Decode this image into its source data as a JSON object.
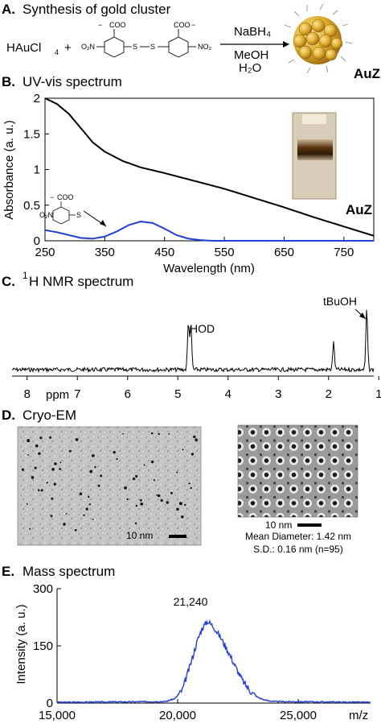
{
  "panels": {
    "a": {
      "letter": "A.",
      "title": "Synthesis of gold cluster",
      "reactant_1": "HAuCl",
      "reactant_1_sub": "4",
      "plus": "+",
      "ligand_coo_left": "COO",
      "ligand_coo_left_charge": "−",
      "ligand_no2_left": "O₂N",
      "ligand_coo_right": "COO",
      "ligand_coo_right_charge": "−",
      "ligand_no2_right": "NO₂",
      "ligand_s": "S",
      "reagent_1": "NaBH₄",
      "reagent_2": "MeOH",
      "reagent_3": "H₂O",
      "product_label": "AuZ"
    },
    "b": {
      "letter": "B.",
      "title": "UV-vis spectrum",
      "auz_label": "AuZ",
      "inset_coo": "COO",
      "inset_coo_charge": "−",
      "inset_no2": "O₂N",
      "inset_s": "S"
    },
    "c": {
      "letter": "C.",
      "title_sup": "1",
      "title": "H NMR spectrum",
      "hod_label": "HOD",
      "tbuoh_label": "tBuOH"
    },
    "d": {
      "letter": "D.",
      "title": "Cryo-EM",
      "scale_left": "10 nm",
      "scale_right": "10 nm",
      "mean_diameter": "Mean Diameter: 1.42 nm",
      "sd": "S.D.: 0.16 nm (n=95)"
    },
    "e": {
      "letter": "E.",
      "title": "Mass spectrum",
      "peak_label": "21,240"
    }
  },
  "chart_data": [
    {
      "type": "line",
      "panel": "B",
      "xlabel": "Wavelength (nm)",
      "ylabel": "Absorbance (a. u.)",
      "xlim": [
        250,
        800
      ],
      "ylim": [
        0,
        2
      ],
      "x_ticks": [
        "250",
        "350",
        "450",
        "550",
        "650",
        "750"
      ],
      "y_ticks": [
        "0",
        "0.5",
        "1",
        "1.5",
        "2"
      ],
      "series": [
        {
          "name": "AuZ",
          "color": "#000000",
          "x": [
            250,
            270,
            290,
            310,
            330,
            350,
            380,
            410,
            450,
            500,
            550,
            600,
            650,
            700,
            750,
            800
          ],
          "y": [
            2.0,
            1.92,
            1.78,
            1.58,
            1.38,
            1.25,
            1.12,
            1.03,
            0.95,
            0.84,
            0.73,
            0.6,
            0.47,
            0.33,
            0.2,
            0.07
          ]
        },
        {
          "name": "ligand",
          "color": "#1f3fd6",
          "x": [
            250,
            270,
            290,
            310,
            330,
            350,
            370,
            390,
            410,
            430,
            450,
            470,
            490,
            510,
            530,
            550,
            600,
            700,
            800
          ],
          "y": [
            0.15,
            0.12,
            0.08,
            0.04,
            0.03,
            0.06,
            0.13,
            0.22,
            0.27,
            0.25,
            0.17,
            0.08,
            0.03,
            0.01,
            0.0,
            0.0,
            0.0,
            0.0,
            0.0
          ]
        }
      ]
    },
    {
      "type": "line",
      "panel": "C",
      "xlabel": "ppm",
      "xlim": [
        8.3,
        1.1
      ],
      "x_reversed": true,
      "x_ticks": [
        "8",
        "7",
        "6",
        "5",
        "4",
        "3",
        "2",
        "1"
      ],
      "peaks": [
        {
          "label": "HOD",
          "ppm": 4.79,
          "height": 0.78
        },
        {
          "ppm": 4.74,
          "height": 0.72
        },
        {
          "ppm": 1.9,
          "height": 0.45
        },
        {
          "label": "tBuOH",
          "ppm": 1.24,
          "height": 1.0
        }
      ]
    },
    {
      "type": "line",
      "panel": "E",
      "xlabel": "m/z",
      "ylabel": "Intensity (a. u.)",
      "xlim": [
        15000,
        28000
      ],
      "ylim": [
        0,
        300
      ],
      "x_ticks": [
        "15,000",
        "20,000",
        "25,000"
      ],
      "y_ticks": [
        "0",
        "150",
        "300"
      ],
      "series": [
        {
          "name": "AuZ",
          "color": "#1f3fd6",
          "x": [
            15000,
            19500,
            19900,
            20200,
            20500,
            20800,
            21000,
            21240,
            21500,
            21800,
            22100,
            22400,
            22700,
            23000,
            23300,
            23600,
            24000,
            28000
          ],
          "y": [
            2,
            4,
            12,
            35,
            95,
            160,
            195,
            215,
            200,
            170,
            135,
            95,
            58,
            32,
            16,
            8,
            4,
            2
          ]
        }
      ]
    }
  ]
}
